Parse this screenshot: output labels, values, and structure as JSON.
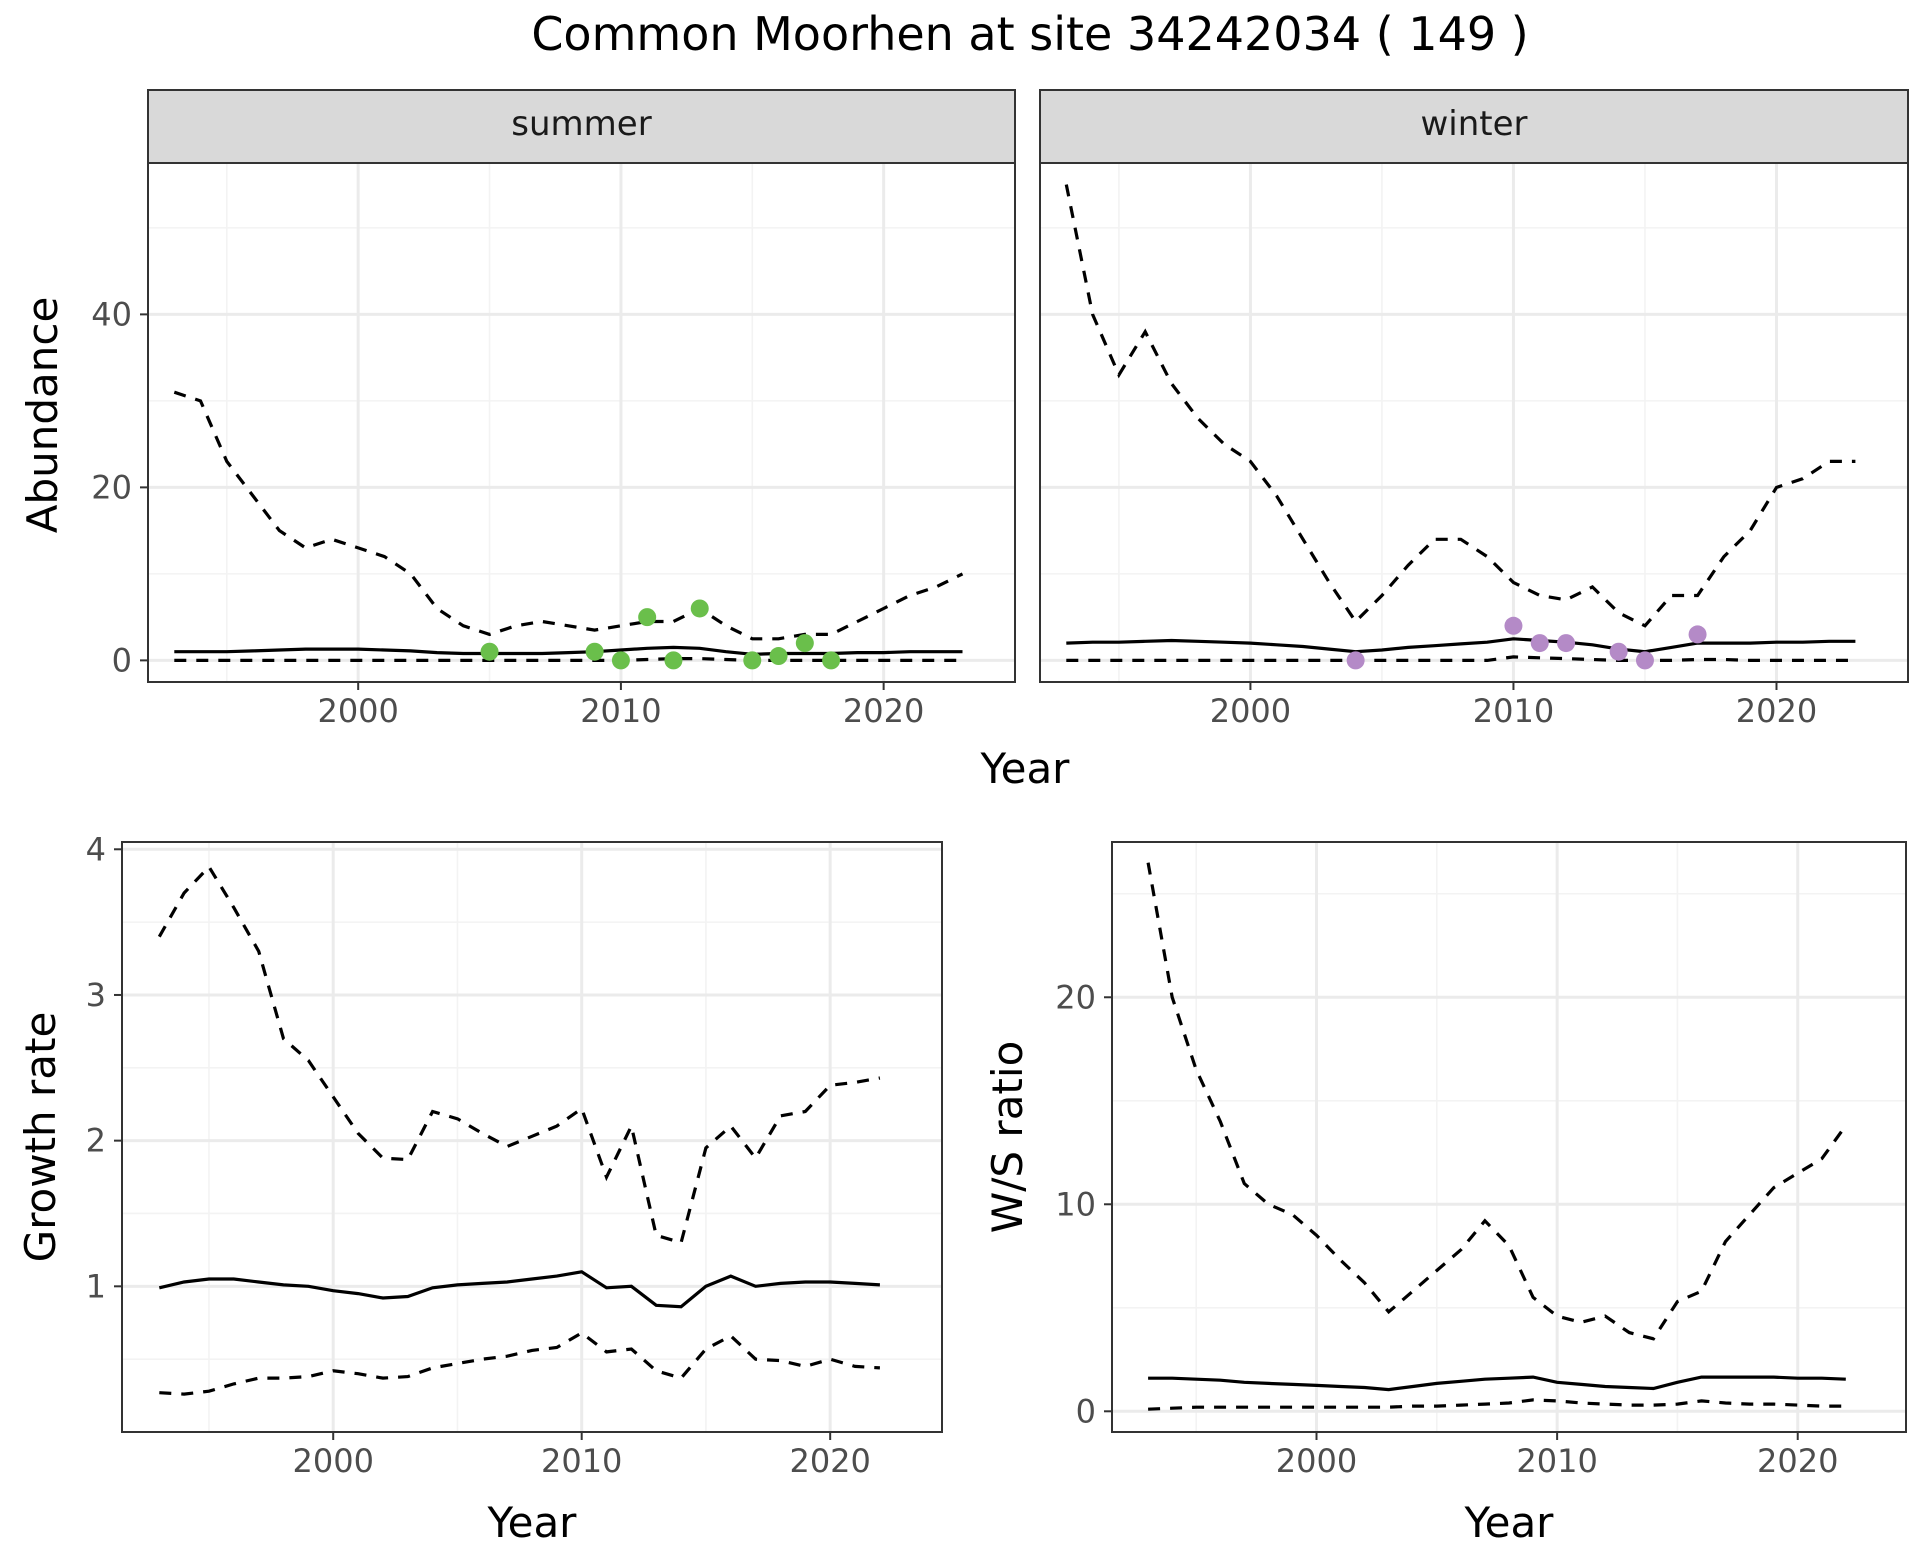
{
  "figure": {
    "title": "Common Moorhen at site 34242034 ( 149 )"
  },
  "chart_data": [
    {
      "type": "line",
      "facet": "summer",
      "xlabel": "Year",
      "ylabel": "Abundance",
      "xlim": [
        1992,
        2025
      ],
      "ylim": [
        -2.5,
        57.5
      ],
      "xticks": [
        2000,
        2010,
        2020
      ],
      "yticks": [
        0,
        20,
        40
      ],
      "grid": true,
      "point_color": "#6abf4b",
      "series": [
        {
          "role": "estimate",
          "style": "solid",
          "x": [
            1993,
            1994,
            1995,
            1996,
            1997,
            1998,
            1999,
            2000,
            2001,
            2002,
            2003,
            2004,
            2005,
            2006,
            2007,
            2008,
            2009,
            2010,
            2011,
            2012,
            2013,
            2014,
            2015,
            2016,
            2017,
            2018,
            2019,
            2020,
            2021,
            2022,
            2023
          ],
          "values": [
            1.0,
            1.0,
            1.0,
            1.1,
            1.2,
            1.3,
            1.3,
            1.3,
            1.2,
            1.1,
            0.9,
            0.8,
            0.8,
            0.8,
            0.8,
            0.9,
            1.0,
            1.2,
            1.4,
            1.5,
            1.4,
            1.0,
            0.7,
            0.8,
            0.8,
            0.8,
            0.9,
            0.9,
            1.0,
            1.0,
            1.0
          ]
        },
        {
          "role": "upper",
          "style": "dashed",
          "x": [
            1993,
            1994,
            1995,
            1996,
            1997,
            1998,
            1999,
            2000,
            2001,
            2002,
            2003,
            2004,
            2005,
            2006,
            2007,
            2008,
            2009,
            2010,
            2011,
            2012,
            2013,
            2014,
            2015,
            2016,
            2017,
            2018,
            2019,
            2020,
            2021,
            2022,
            2023
          ],
          "values": [
            31,
            30,
            23,
            19,
            15,
            13,
            14,
            13,
            12,
            10,
            6,
            4,
            3,
            4,
            4.5,
            4,
            3.5,
            4,
            4.5,
            4.5,
            6,
            4,
            2.5,
            2.5,
            3,
            3,
            4.5,
            6,
            7.5,
            8.5,
            10
          ]
        },
        {
          "role": "lower",
          "style": "dashed",
          "x": [
            1993,
            1994,
            1995,
            1996,
            1997,
            1998,
            1999,
            2000,
            2001,
            2002,
            2003,
            2004,
            2005,
            2006,
            2007,
            2008,
            2009,
            2010,
            2011,
            2012,
            2013,
            2014,
            2015,
            2016,
            2017,
            2018,
            2019,
            2020,
            2021,
            2022,
            2023
          ],
          "values": [
            0,
            0,
            0,
            0,
            0,
            0,
            0,
            0,
            0,
            0,
            0,
            0,
            0,
            0,
            0,
            0,
            0,
            0,
            0.1,
            0.2,
            0.2,
            0.1,
            0,
            0,
            0,
            0,
            0,
            0,
            0,
            0,
            0
          ]
        },
        {
          "role": "observed",
          "style": "points",
          "x": [
            2005,
            2009,
            2010,
            2011,
            2012,
            2013,
            2015,
            2016,
            2017,
            2018
          ],
          "values": [
            1,
            1,
            0,
            5,
            0,
            6,
            0,
            0.5,
            2,
            0
          ]
        }
      ]
    },
    {
      "type": "line",
      "facet": "winter",
      "xlabel": "Year",
      "ylabel": "Abundance",
      "xlim": [
        1992,
        2025
      ],
      "ylim": [
        -2.5,
        57.5
      ],
      "xticks": [
        2000,
        2010,
        2020
      ],
      "yticks": [
        0,
        20,
        40
      ],
      "grid": true,
      "point_color": "#b48ac7",
      "series": [
        {
          "role": "estimate",
          "style": "solid",
          "x": [
            1993,
            1994,
            1995,
            1996,
            1997,
            1998,
            1999,
            2000,
            2001,
            2002,
            2003,
            2004,
            2005,
            2006,
            2007,
            2008,
            2009,
            2010,
            2011,
            2012,
            2013,
            2014,
            2015,
            2016,
            2017,
            2018,
            2019,
            2020,
            2021,
            2022,
            2023
          ],
          "values": [
            2,
            2.1,
            2.1,
            2.2,
            2.3,
            2.2,
            2.1,
            2.0,
            1.8,
            1.6,
            1.3,
            1.0,
            1.2,
            1.5,
            1.7,
            1.9,
            2.1,
            2.5,
            2.3,
            2.1,
            1.8,
            1.3,
            1.0,
            1.5,
            2.0,
            2.0,
            2.0,
            2.1,
            2.1,
            2.2,
            2.2
          ]
        },
        {
          "role": "upper",
          "style": "dashed",
          "x": [
            1993,
            1994,
            1995,
            1996,
            1997,
            1998,
            1999,
            2000,
            2001,
            2002,
            2003,
            2004,
            2005,
            2006,
            2007,
            2008,
            2009,
            2010,
            2011,
            2012,
            2013,
            2014,
            2015,
            2016,
            2017,
            2018,
            2019,
            2020,
            2021,
            2022,
            2023
          ],
          "values": [
            55,
            40,
            33,
            38,
            32,
            28,
            25,
            23,
            19,
            14,
            9,
            4.5,
            7.5,
            11,
            14,
            14,
            12,
            9,
            7.5,
            7,
            8.5,
            5.5,
            4,
            7.5,
            7.5,
            12,
            15,
            20,
            21,
            23,
            23
          ]
        },
        {
          "role": "lower",
          "style": "dashed",
          "x": [
            1993,
            1994,
            1995,
            1996,
            1997,
            1998,
            1999,
            2000,
            2001,
            2002,
            2003,
            2004,
            2005,
            2006,
            2007,
            2008,
            2009,
            2010,
            2011,
            2012,
            2013,
            2014,
            2015,
            2016,
            2017,
            2018,
            2019,
            2020,
            2021,
            2022,
            2023
          ],
          "values": [
            0,
            0,
            0,
            0,
            0,
            0,
            0,
            0,
            0,
            0,
            0,
            0,
            0,
            0,
            0,
            0,
            0,
            0.4,
            0.3,
            0.2,
            0.1,
            0,
            0,
            0,
            0.1,
            0.1,
            0,
            0,
            0,
            0,
            0
          ]
        },
        {
          "role": "observed",
          "style": "points",
          "x": [
            2004,
            2010,
            2011,
            2012,
            2014,
            2015,
            2017
          ],
          "values": [
            0,
            4,
            2,
            2,
            1,
            0,
            3
          ]
        }
      ]
    },
    {
      "type": "line",
      "xlabel": "Year",
      "ylabel": "Growth rate",
      "xlim": [
        1991.5,
        2024.5
      ],
      "ylim": [
        0.0,
        4.05
      ],
      "xticks": [
        2000,
        2010,
        2020
      ],
      "yticks": [
        1,
        2,
        3,
        4
      ],
      "grid": true,
      "series": [
        {
          "role": "estimate",
          "style": "solid",
          "x": [
            1993,
            1994,
            1995,
            1996,
            1997,
            1998,
            1999,
            2000,
            2001,
            2002,
            2003,
            2004,
            2005,
            2006,
            2007,
            2008,
            2009,
            2010,
            2011,
            2012,
            2013,
            2014,
            2015,
            2016,
            2017,
            2018,
            2019,
            2020,
            2021,
            2022
          ],
          "values": [
            0.99,
            1.03,
            1.05,
            1.05,
            1.03,
            1.01,
            1.0,
            0.97,
            0.95,
            0.92,
            0.93,
            0.99,
            1.01,
            1.02,
            1.03,
            1.05,
            1.07,
            1.1,
            0.99,
            1.0,
            0.87,
            0.86,
            1.0,
            1.07,
            1.0,
            1.02,
            1.03,
            1.03,
            1.02,
            1.01
          ]
        },
        {
          "role": "upper",
          "style": "dashed",
          "x": [
            1993,
            1994,
            1995,
            1996,
            1997,
            1998,
            1999,
            2000,
            2001,
            2002,
            2003,
            2004,
            2005,
            2006,
            2007,
            2008,
            2009,
            2010,
            2011,
            2012,
            2013,
            2014,
            2015,
            2016,
            2017,
            2018,
            2019,
            2020,
            2021,
            2022
          ],
          "values": [
            3.4,
            3.7,
            3.88,
            3.6,
            3.3,
            2.7,
            2.55,
            2.3,
            2.05,
            1.88,
            1.87,
            2.2,
            2.15,
            2.05,
            1.96,
            2.03,
            2.1,
            2.22,
            1.75,
            2.1,
            1.35,
            1.3,
            1.95,
            2.1,
            1.88,
            2.17,
            2.2,
            2.38,
            2.4,
            2.43
          ]
        },
        {
          "role": "lower",
          "style": "dashed",
          "x": [
            1993,
            1994,
            1995,
            1996,
            1997,
            1998,
            1999,
            2000,
            2001,
            2002,
            2003,
            2004,
            2005,
            2006,
            2007,
            2008,
            2009,
            2010,
            2011,
            2012,
            2013,
            2014,
            2015,
            2016,
            2017,
            2018,
            2019,
            2020,
            2021,
            2022
          ],
          "values": [
            0.27,
            0.26,
            0.28,
            0.33,
            0.37,
            0.37,
            0.38,
            0.42,
            0.4,
            0.37,
            0.38,
            0.44,
            0.47,
            0.5,
            0.52,
            0.56,
            0.58,
            0.68,
            0.55,
            0.57,
            0.42,
            0.37,
            0.57,
            0.66,
            0.5,
            0.49,
            0.45,
            0.5,
            0.45,
            0.44
          ]
        }
      ]
    },
    {
      "type": "line",
      "xlabel": "Year",
      "ylabel": "W/S ratio",
      "xlim": [
        1991.5,
        2024.5
      ],
      "ylim": [
        -1.0,
        27.5
      ],
      "xticks": [
        2000,
        2010,
        2020
      ],
      "yticks": [
        0,
        10,
        20
      ],
      "grid": true,
      "series": [
        {
          "role": "estimate",
          "style": "solid",
          "x": [
            1993,
            1994,
            1995,
            1996,
            1997,
            1998,
            1999,
            2000,
            2001,
            2002,
            2003,
            2004,
            2005,
            2006,
            2007,
            2008,
            2009,
            2010,
            2011,
            2012,
            2013,
            2014,
            2015,
            2016,
            2017,
            2018,
            2019,
            2020,
            2021,
            2022
          ],
          "values": [
            1.6,
            1.6,
            1.55,
            1.5,
            1.4,
            1.35,
            1.3,
            1.25,
            1.2,
            1.15,
            1.05,
            1.2,
            1.35,
            1.45,
            1.55,
            1.6,
            1.65,
            1.4,
            1.3,
            1.2,
            1.15,
            1.1,
            1.4,
            1.65,
            1.65,
            1.65,
            1.65,
            1.6,
            1.6,
            1.55
          ]
        },
        {
          "role": "upper",
          "style": "dashed",
          "x": [
            1993,
            1994,
            1995,
            1996,
            1997,
            1998,
            1999,
            2000,
            2001,
            2002,
            2003,
            2004,
            2005,
            2006,
            2007,
            2008,
            2009,
            2010,
            2011,
            2012,
            2013,
            2014,
            2015,
            2016,
            2017,
            2018,
            2019,
            2020,
            2021,
            2022
          ],
          "values": [
            26.5,
            20,
            16.5,
            14,
            11,
            10,
            9.5,
            8.5,
            7.3,
            6.2,
            4.8,
            5.8,
            6.8,
            7.8,
            9.2,
            8,
            5.5,
            4.6,
            4.3,
            4.6,
            3.8,
            3.5,
            5.3,
            5.8,
            8.2,
            9.5,
            10.8,
            11.5,
            12.2,
            13.8
          ]
        },
        {
          "role": "lower",
          "style": "dashed",
          "x": [
            1993,
            1994,
            1995,
            1996,
            1997,
            1998,
            1999,
            2000,
            2001,
            2002,
            2003,
            2004,
            2005,
            2006,
            2007,
            2008,
            2009,
            2010,
            2011,
            2012,
            2013,
            2014,
            2015,
            2016,
            2017,
            2018,
            2019,
            2020,
            2021,
            2022
          ],
          "values": [
            0.1,
            0.15,
            0.2,
            0.2,
            0.2,
            0.2,
            0.2,
            0.2,
            0.2,
            0.2,
            0.2,
            0.25,
            0.25,
            0.3,
            0.35,
            0.4,
            0.55,
            0.5,
            0.4,
            0.35,
            0.3,
            0.3,
            0.35,
            0.5,
            0.4,
            0.35,
            0.35,
            0.3,
            0.25,
            0.25
          ]
        }
      ]
    }
  ]
}
